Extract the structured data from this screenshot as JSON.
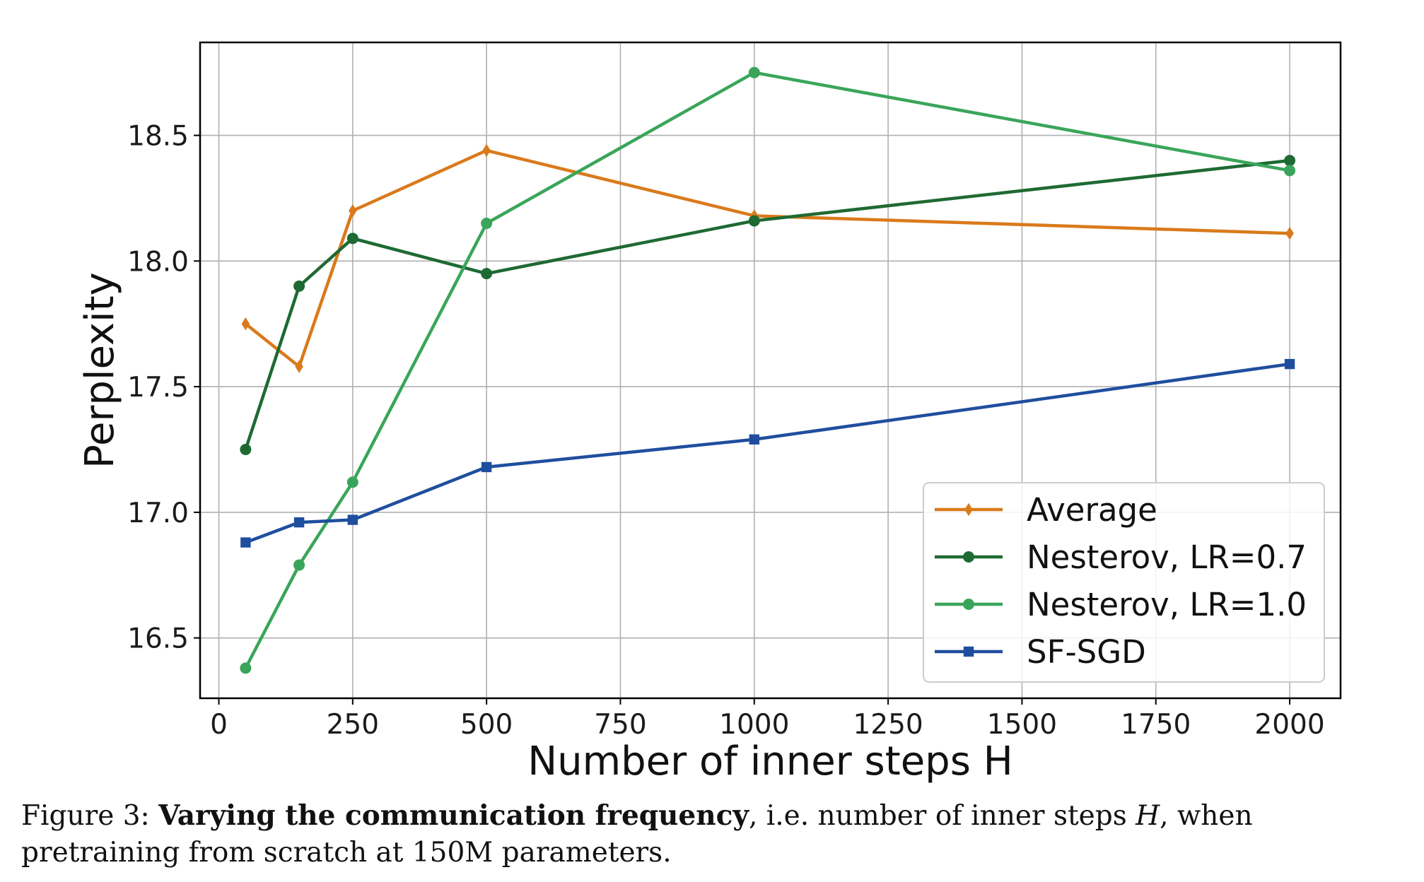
{
  "chart_data": {
    "type": "line",
    "xlabel": "Number of inner steps H",
    "ylabel": "Perplexity",
    "xlim": [
      -35,
      2095
    ],
    "ylim": [
      16.26,
      18.87
    ],
    "xticks": [
      0,
      250,
      500,
      750,
      1000,
      1250,
      1500,
      1750,
      2000
    ],
    "yticks": [
      16.5,
      17.0,
      17.5,
      18.0,
      18.5
    ],
    "grid": true,
    "legend_position": "lower-right",
    "series": [
      {
        "name": "Average",
        "color": "#d97a1c",
        "marker": "diamond",
        "x": [
          50,
          150,
          250,
          500,
          1000,
          2000
        ],
        "y": [
          17.75,
          17.58,
          18.2,
          18.44,
          18.18,
          18.11
        ]
      },
      {
        "name": "Nesterov, LR=0.7",
        "color": "#1e6a33",
        "marker": "circle",
        "x": [
          50,
          150,
          250,
          500,
          1000,
          2000
        ],
        "y": [
          17.25,
          17.9,
          18.09,
          17.95,
          18.16,
          18.4
        ]
      },
      {
        "name": "Nesterov, LR=1.0",
        "color": "#3aa55a",
        "marker": "circle",
        "x": [
          50,
          150,
          250,
          500,
          1000,
          2000
        ],
        "y": [
          16.38,
          16.79,
          17.12,
          18.15,
          18.75,
          18.36
        ]
      },
      {
        "name": "SF-SGD",
        "color": "#1f4e9e",
        "marker": "square",
        "x": [
          50,
          150,
          250,
          500,
          1000,
          2000
        ],
        "y": [
          16.88,
          16.96,
          16.97,
          17.18,
          17.29,
          17.59
        ]
      }
    ]
  },
  "caption": {
    "prefix": "Figure 3: ",
    "bold": "Varying the communication frequency",
    "middle": ", i.e. number of inner steps ",
    "var": "H",
    "suffix": ", when pretraining from scratch at 150M parameters."
  }
}
